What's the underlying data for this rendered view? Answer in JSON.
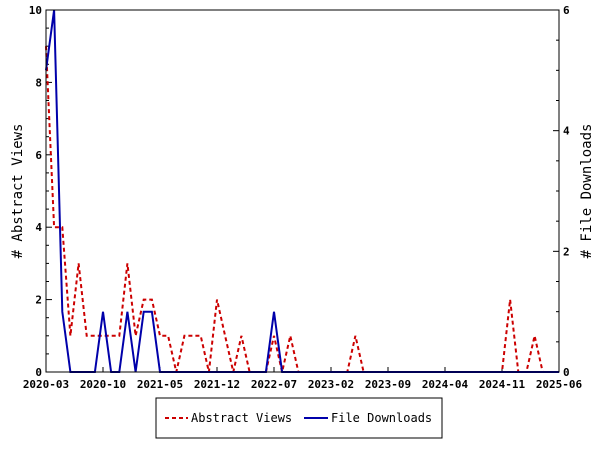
{
  "chart_data": {
    "type": "line",
    "x_ticks": [
      "2020-03",
      "2020-10",
      "2021-05",
      "2021-12",
      "2022-07",
      "2023-02",
      "2023-09",
      "2024-04",
      "2024-11",
      "2025-06"
    ],
    "x_range": [
      "2020-03",
      "2025-06"
    ],
    "y_left": {
      "label": "# Abstract Views",
      "range": [
        0,
        10
      ],
      "ticks": [
        0,
        2,
        4,
        6,
        8,
        10
      ]
    },
    "y_right": {
      "label": "# File Downloads",
      "range": [
        0,
        6
      ],
      "ticks": [
        0,
        2,
        4,
        6
      ]
    },
    "series": [
      {
        "name": "Abstract Views",
        "axis": "left",
        "color": "#cc0000",
        "style": "dashed",
        "points": [
          [
            "2020-03",
            9
          ],
          [
            "2020-04",
            4
          ],
          [
            "2020-05",
            4
          ],
          [
            "2020-06",
            1
          ],
          [
            "2020-07",
            3
          ],
          [
            "2020-08",
            1
          ],
          [
            "2020-09",
            1
          ],
          [
            "2020-10",
            1
          ],
          [
            "2020-11",
            1
          ],
          [
            "2020-12",
            1
          ],
          [
            "2021-01",
            3
          ],
          [
            "2021-02",
            1
          ],
          [
            "2021-03",
            2
          ],
          [
            "2021-04",
            2
          ],
          [
            "2021-05",
            1
          ],
          [
            "2021-06",
            1
          ],
          [
            "2021-07",
            0
          ],
          [
            "2021-08",
            1
          ],
          [
            "2021-09",
            1
          ],
          [
            "2021-10",
            1
          ],
          [
            "2021-11",
            0
          ],
          [
            "2021-12",
            2
          ],
          [
            "2022-01",
            1
          ],
          [
            "2022-02",
            0
          ],
          [
            "2022-03",
            1
          ],
          [
            "2022-04",
            0
          ],
          [
            "2022-05",
            0
          ],
          [
            "2022-06",
            0
          ],
          [
            "2022-07",
            1
          ],
          [
            "2022-08",
            0
          ],
          [
            "2022-09",
            1
          ],
          [
            "2022-10",
            0
          ],
          [
            "2022-11",
            0
          ],
          [
            "2023-03",
            0
          ],
          [
            "2023-04",
            0
          ],
          [
            "2023-05",
            1
          ],
          [
            "2023-06",
            0
          ],
          [
            "2023-07",
            0
          ],
          [
            "2024-11",
            0
          ],
          [
            "2024-12",
            2
          ],
          [
            "2025-01",
            0
          ],
          [
            "2025-02",
            0
          ],
          [
            "2025-03",
            1
          ],
          [
            "2025-04",
            0
          ],
          [
            "2025-06",
            0
          ]
        ]
      },
      {
        "name": "File Downloads",
        "axis": "right",
        "color": "#0000aa",
        "style": "solid",
        "points": [
          [
            "2020-03",
            5
          ],
          [
            "2020-04",
            6
          ],
          [
            "2020-05",
            1
          ],
          [
            "2020-06",
            0
          ],
          [
            "2020-07",
            0
          ],
          [
            "2020-08",
            0
          ],
          [
            "2020-09",
            0
          ],
          [
            "2020-10",
            1
          ],
          [
            "2020-11",
            0
          ],
          [
            "2020-12",
            0
          ],
          [
            "2021-01",
            1
          ],
          [
            "2021-02",
            0
          ],
          [
            "2021-03",
            1
          ],
          [
            "2021-04",
            1
          ],
          [
            "2021-05",
            0
          ],
          [
            "2021-06",
            0
          ],
          [
            "2022-06",
            0
          ],
          [
            "2022-07",
            1
          ],
          [
            "2022-08",
            0
          ],
          [
            "2025-06",
            0
          ]
        ]
      }
    ],
    "legend": {
      "position": "bottom",
      "entries": [
        "Abstract Views",
        "File Downloads"
      ]
    }
  }
}
